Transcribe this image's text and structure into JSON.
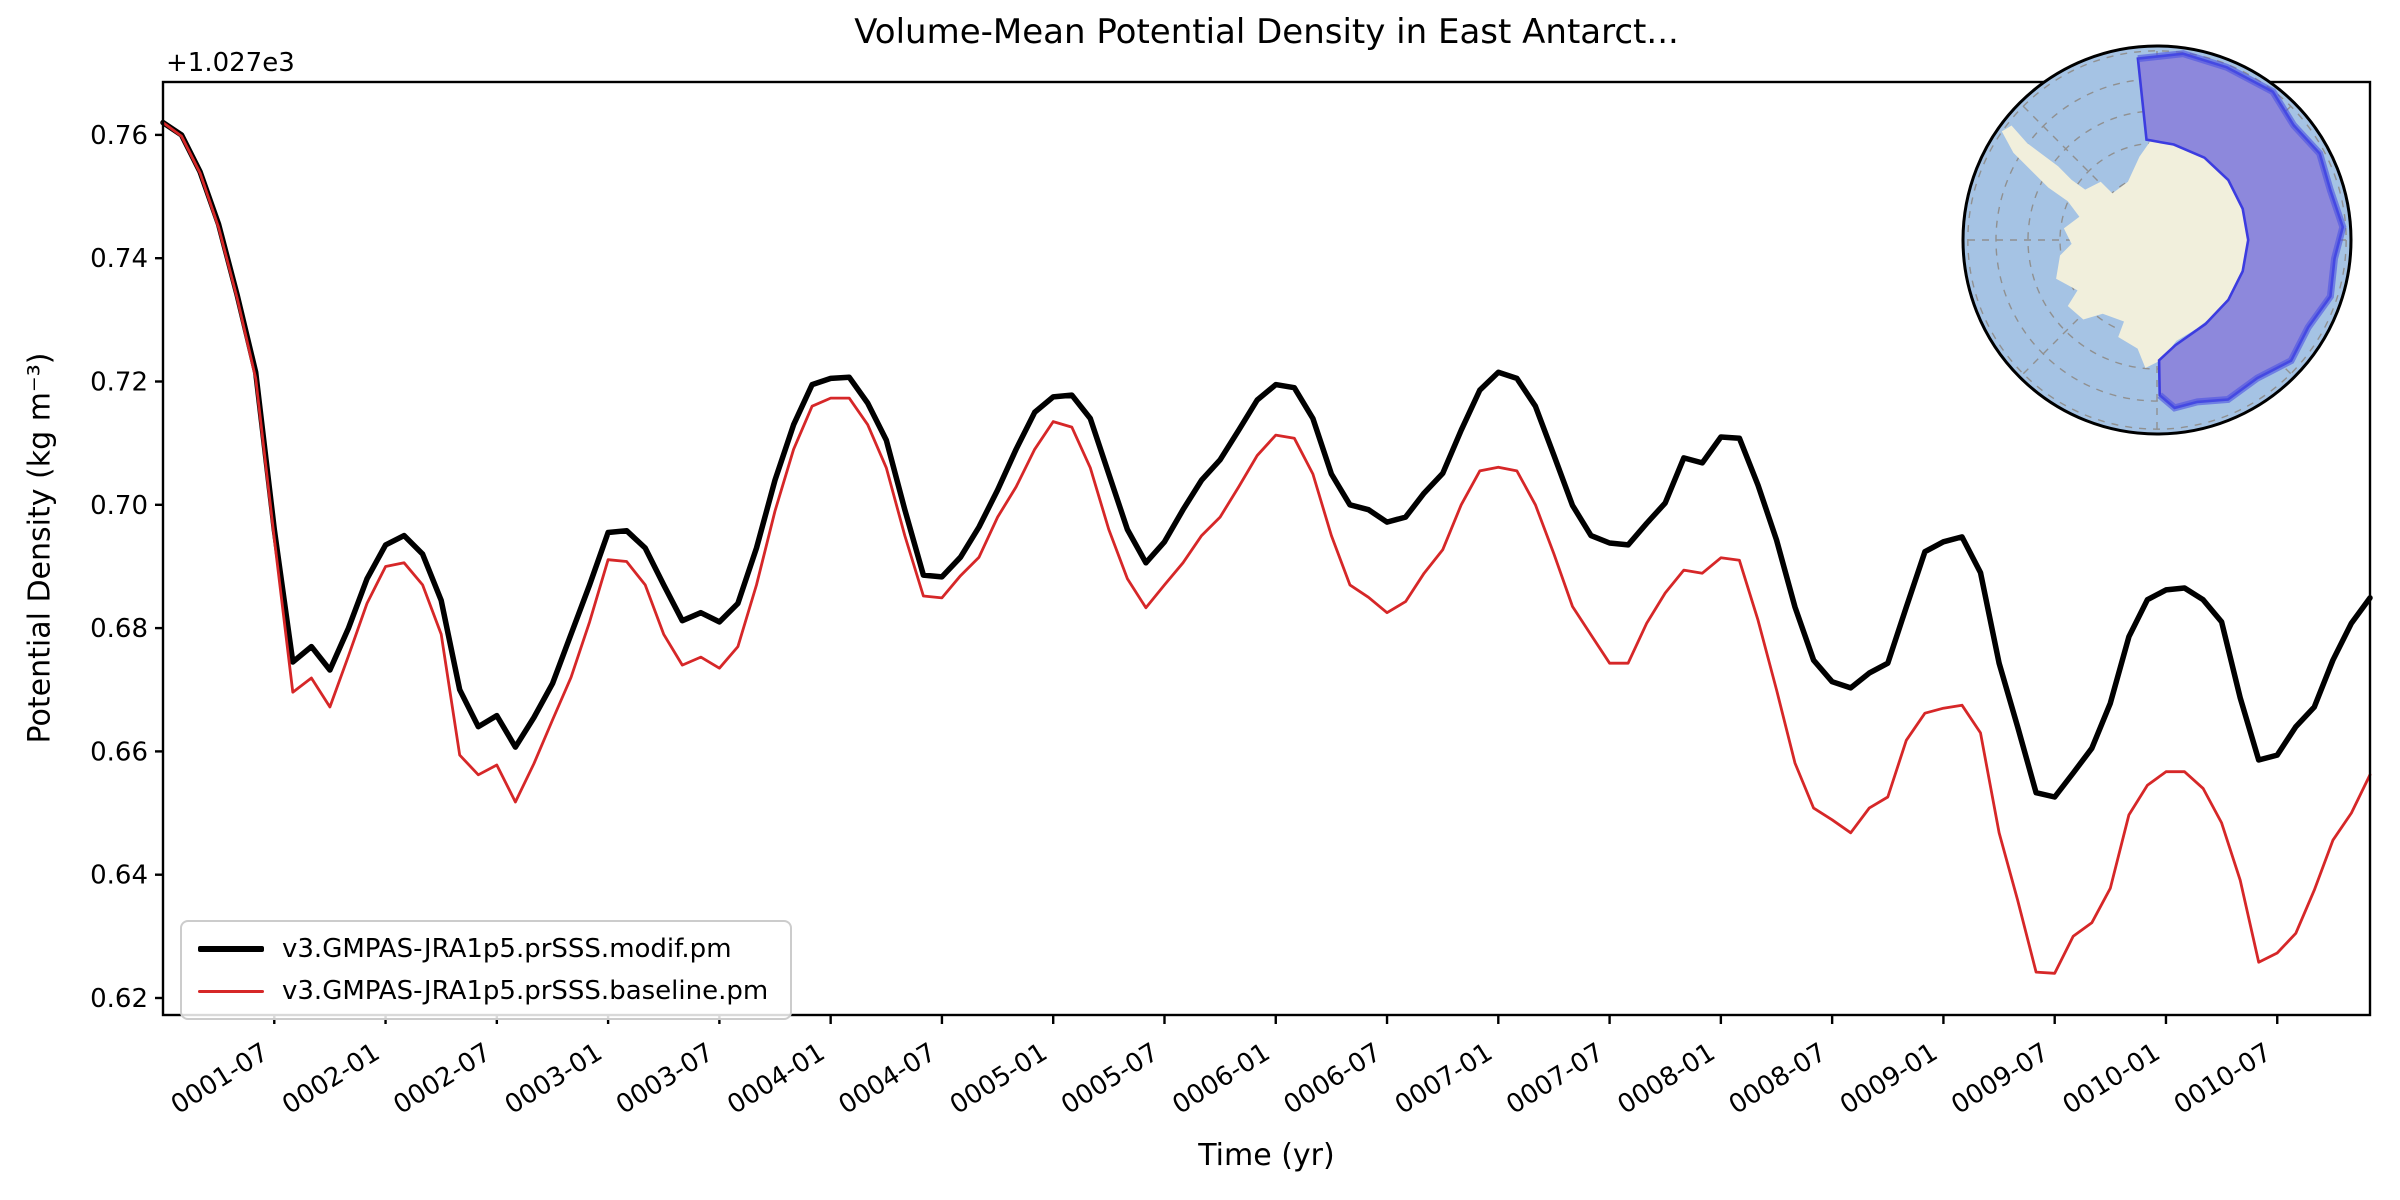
{
  "title": "Volume-Mean Potential Density in East Antarct...",
  "axes": {
    "x_label": "Time (yr)",
    "y_label": "Potential Density (kg m⁻³)",
    "y_offset_label": "+1.027e3",
    "y_tick_labels": [
      "0.76",
      "0.74",
      "0.72",
      "0.70",
      "0.68",
      "0.66",
      "0.64",
      "0.62"
    ],
    "x_tick_labels": [
      "0001-07",
      "0002-01",
      "0002-07",
      "0003-01",
      "0003-07",
      "0004-01",
      "0004-07",
      "0005-01",
      "0005-07",
      "0006-01",
      "0006-07",
      "0007-01",
      "0007-07",
      "0008-01",
      "0008-07",
      "0009-01",
      "0009-07",
      "0010-01",
      "0010-07"
    ]
  },
  "legend": {
    "entries": [
      {
        "label": "v3.GMPAS-JRA1p5.prSSS.modif.pm",
        "color": "#000000",
        "thickness": 6
      },
      {
        "label": "v3.GMPAS-JRA1p5.prSSS.baseline.pm",
        "color": "#d62728",
        "thickness": 3
      }
    ]
  },
  "inset_map": {
    "description": "South polar stereographic map of Antarctica with the East Antarctica ocean region highlighted",
    "ocean_color": "#a5c3e4",
    "land_color": "#f1efdc",
    "region_fill": "#8d88dc",
    "region_border": "#3c3ce0",
    "graticule_color": "#909090"
  },
  "chart_data": {
    "type": "line",
    "title": "Volume-Mean Potential Density in East Antarct...",
    "xlabel": "Time (yr)",
    "ylabel": "Potential Density (kg m⁻³)",
    "y_axis_offset": "+1.027e3",
    "x_start": "0001-01",
    "x_step_months": 1,
    "x_tick_labels": [
      "0001-07",
      "0002-01",
      "0002-07",
      "0003-01",
      "0003-07",
      "0004-01",
      "0004-07",
      "0005-01",
      "0005-07",
      "0006-01",
      "0006-07",
      "0007-01",
      "0007-07",
      "0008-01",
      "0008-07",
      "0009-01",
      "0009-07",
      "0010-01",
      "0010-07"
    ],
    "ylim_relative": [
      0.6172,
      0.7685
    ],
    "y_values_relative_to": "1027 kg m-3 (axis offset +1.027e3)",
    "grid": false,
    "legend_position": "lower left",
    "series": [
      {
        "name": "v3.GMPAS-JRA1p5.prSSS.modif.pm",
        "color": "#000000",
        "linewidth": 5.5,
        "values": [
          0.762,
          0.76,
          0.754,
          0.7455,
          0.734,
          0.7215,
          0.696,
          0.6745,
          0.677,
          0.6732,
          0.68,
          0.688,
          0.6935,
          0.695,
          0.692,
          0.6845,
          0.67,
          0.664,
          0.6658,
          0.6607,
          0.6655,
          0.671,
          0.679,
          0.687,
          0.6955,
          0.6958,
          0.693,
          0.687,
          0.6812,
          0.6825,
          0.681,
          0.684,
          0.693,
          0.704,
          0.713,
          0.7195,
          0.7205,
          0.7207,
          0.7165,
          0.7105,
          0.6992,
          0.6886,
          0.6883,
          0.6915,
          0.6964,
          0.7024,
          0.709,
          0.715,
          0.7175,
          0.7178,
          0.714,
          0.705,
          0.696,
          0.6906,
          0.694,
          0.6992,
          0.704,
          0.7073,
          0.7121,
          0.717,
          0.7195,
          0.719,
          0.714,
          0.705,
          0.7,
          0.6992,
          0.6972,
          0.698,
          0.7019,
          0.7051,
          0.7121,
          0.7186,
          0.7215,
          0.7205,
          0.716,
          0.708,
          0.6999,
          0.695,
          0.6938,
          0.6935,
          0.697,
          0.7003,
          0.7076,
          0.7068,
          0.711,
          0.7108,
          0.7032,
          0.6943,
          0.6834,
          0.6748,
          0.6713,
          0.6703,
          0.6727,
          0.6743,
          0.6834,
          0.6924,
          0.694,
          0.6948,
          0.689,
          0.6743,
          0.664,
          0.6533,
          0.6526,
          0.6565,
          0.6605,
          0.6678,
          0.6786,
          0.6846,
          0.6862,
          0.6865,
          0.6846,
          0.681,
          0.6687,
          0.6586,
          0.6594,
          0.664,
          0.6672,
          0.6748,
          0.6808,
          0.6849
        ]
      },
      {
        "name": "v3.GMPAS-JRA1p5.prSSS.baseline.pm",
        "color": "#d62728",
        "linewidth": 2.8,
        "values": [
          0.762,
          0.7598,
          0.7538,
          0.745,
          0.7335,
          0.7205,
          0.6945,
          0.6696,
          0.6719,
          0.6672,
          0.6755,
          0.684,
          0.69,
          0.6906,
          0.687,
          0.679,
          0.6594,
          0.6562,
          0.6578,
          0.6518,
          0.658,
          0.6651,
          0.672,
          0.681,
          0.6911,
          0.6908,
          0.687,
          0.679,
          0.674,
          0.6753,
          0.6735,
          0.677,
          0.687,
          0.699,
          0.709,
          0.716,
          0.7173,
          0.7173,
          0.713,
          0.706,
          0.695,
          0.6852,
          0.6849,
          0.6885,
          0.6915,
          0.698,
          0.7029,
          0.709,
          0.7135,
          0.7126,
          0.706,
          0.696,
          0.688,
          0.6833,
          0.687,
          0.6906,
          0.695,
          0.698,
          0.7029,
          0.708,
          0.7113,
          0.7108,
          0.705,
          0.695,
          0.687,
          0.685,
          0.6825,
          0.6843,
          0.6889,
          0.6927,
          0.7,
          0.7055,
          0.7061,
          0.7055,
          0.7,
          0.692,
          0.6835,
          0.6789,
          0.6743,
          0.6743,
          0.6808,
          0.6857,
          0.6894,
          0.6889,
          0.6914,
          0.691,
          0.6813,
          0.67,
          0.6581,
          0.6508,
          0.6489,
          0.6468,
          0.6508,
          0.6526,
          0.6618,
          0.6662,
          0.667,
          0.6675,
          0.663,
          0.6468,
          0.6359,
          0.6242,
          0.624,
          0.63,
          0.6322,
          0.6378,
          0.6497,
          0.6545,
          0.6567,
          0.6567,
          0.654,
          0.6484,
          0.6391,
          0.6258,
          0.6273,
          0.6305,
          0.6375,
          0.6456,
          0.65,
          0.6562
        ]
      }
    ]
  }
}
